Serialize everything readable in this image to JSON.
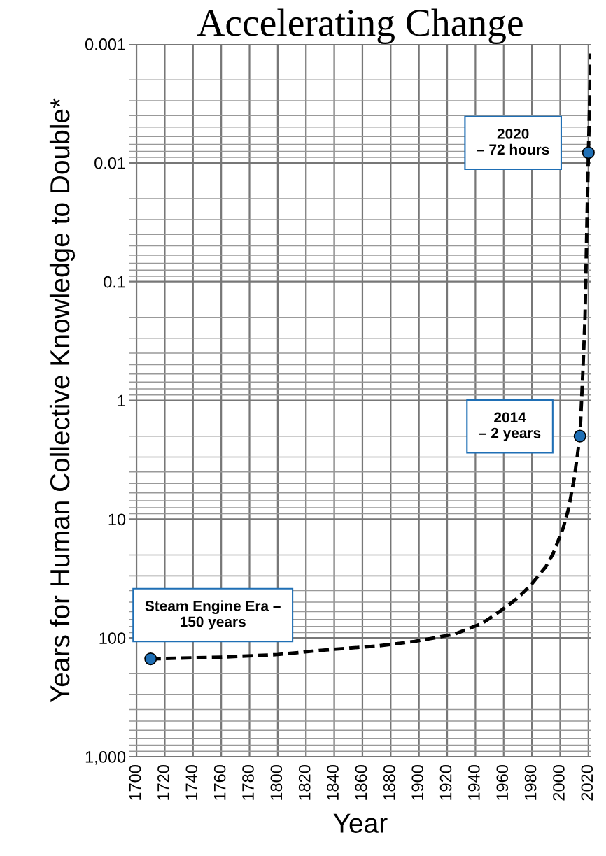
{
  "chart_data": {
    "type": "line",
    "title": "Accelerating Change",
    "xlabel": "Year",
    "ylabel": "Years for Human Collective Knowledge to Double*",
    "series": [
      {
        "color": "#000000",
        "line_style": "dashed",
        "marker": "none",
        "x": [
          1710,
          1760,
          1800,
          1831,
          1870,
          1897,
          1925,
          1945,
          1958,
          1970,
          1980,
          1990,
          1995,
          2002,
          2006,
          2010,
          2014,
          2016,
          2017.6,
          2019,
          2020,
          2021.7
        ],
        "values": [
          150,
          145,
          138,
          127,
          117,
          107,
          93,
          75,
          59,
          46,
          35,
          25,
          19.5,
          12,
          8.1,
          4.5,
          2,
          0.6,
          0.2,
          0.03,
          0.0082,
          0.0012
        ]
      },
      {
        "type": "scatter",
        "color": "#1f6fb5",
        "marker": "circle",
        "x": [
          1710,
          2014,
          2020
        ],
        "values": [
          150,
          2,
          0.0082
        ]
      }
    ],
    "log": "y",
    "xlim": [
      1695,
      2022
    ],
    "ylim": [
      1000,
      0.001
    ],
    "xticks": [
      1700,
      1720,
      1740,
      1760,
      1780,
      1800,
      1820,
      1840,
      1860,
      1880,
      1900,
      1920,
      1940,
      1960,
      1980,
      2000,
      2020
    ],
    "yticks": [
      0.001,
      0.01,
      0.1,
      1,
      10,
      100,
      {
        "value": 1000,
        "label": "1,000"
      }
    ],
    "grid": true,
    "annotations": [
      {
        "text": "Steam Engine Era –\n150 years",
        "x": 1710,
        "y": 150
      },
      {
        "text": "2014\n– 2 years",
        "x": 2014,
        "y": 2
      },
      {
        "text": "2020\n– 72 hours",
        "x": 2020,
        "y": 0.0082
      }
    ]
  }
}
